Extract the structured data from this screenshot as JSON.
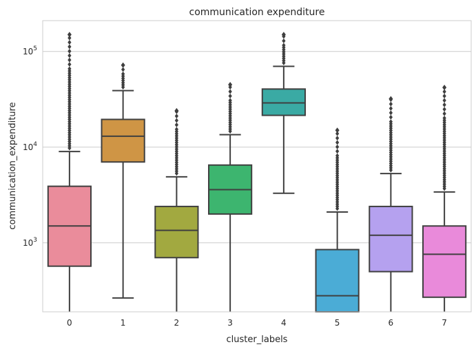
{
  "chart_data": {
    "type": "box",
    "title": "communication expenditure",
    "xlabel": "cluster_labels",
    "ylabel": "communication_expenditure",
    "yscale": "log",
    "ylim": [
      190,
      210000
    ],
    "grid": "horizontal",
    "ytick_labels": [
      {
        "base": "10",
        "exp": "3",
        "value": 1000
      },
      {
        "base": "10",
        "exp": "4",
        "value": 10000
      },
      {
        "base": "10",
        "exp": "5",
        "value": 100000
      }
    ],
    "categories": [
      "0",
      "1",
      "2",
      "3",
      "4",
      "5",
      "6",
      "7"
    ],
    "boxes": [
      {
        "label": "0",
        "color": "#ea8c9b",
        "q1": 570,
        "median": 1500,
        "q3": 3900,
        "whisker_low": 190,
        "whisker_high": 9000,
        "max_outlier": 150000
      },
      {
        "label": "1",
        "color": "#cf9545",
        "q1": 7000,
        "median": 13000,
        "q3": 19500,
        "whisker_low": 265,
        "whisker_high": 39000,
        "max_outlier": 72000
      },
      {
        "label": "2",
        "color": "#a2a940",
        "q1": 700,
        "median": 1350,
        "q3": 2400,
        "whisker_low": 190,
        "whisker_high": 4900,
        "max_outlier": 24000
      },
      {
        "label": "3",
        "color": "#3db56f",
        "q1": 2000,
        "median": 3600,
        "q3": 6500,
        "whisker_low": 190,
        "whisker_high": 13500,
        "max_outlier": 45000
      },
      {
        "label": "4",
        "color": "#3aaaa4",
        "q1": 21500,
        "median": 29000,
        "q3": 40500,
        "whisker_low": 3300,
        "whisker_high": 70000,
        "max_outlier": 150000
      },
      {
        "label": "5",
        "color": "#4bacd6",
        "q1": 190,
        "median": 280,
        "q3": 850,
        "whisker_low": 190,
        "whisker_high": 2100,
        "max_outlier": 15000
      },
      {
        "label": "6",
        "color": "#b5a1ef",
        "q1": 500,
        "median": 1200,
        "q3": 2400,
        "whisker_low": 190,
        "whisker_high": 5300,
        "max_outlier": 32000
      },
      {
        "label": "7",
        "color": "#e98ada",
        "q1": 270,
        "median": 760,
        "q3": 1500,
        "whisker_low": 190,
        "whisker_high": 3400,
        "max_outlier": 42000
      }
    ]
  }
}
